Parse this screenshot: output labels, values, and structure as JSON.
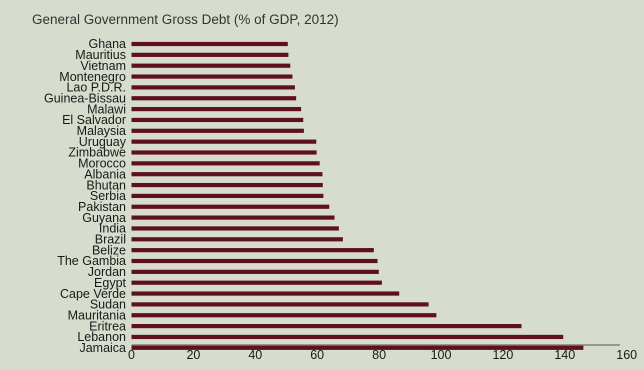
{
  "colors": {
    "background": "#d7ddce",
    "bar": "#5e1020",
    "axis": "#555555",
    "text": "#1a1a1a"
  },
  "chart_data": {
    "type": "bar",
    "orientation": "horizontal",
    "title": "General Government Gross Debt (% of GDP, 2012)",
    "xlabel": "",
    "ylabel": "",
    "xlim": [
      0,
      160
    ],
    "xticks": [
      0,
      20,
      40,
      60,
      80,
      100,
      120,
      140,
      160
    ],
    "grid": false,
    "legend": "none",
    "categories": [
      "Ghana",
      "Mauritius",
      "Vietnam",
      "Montenegro",
      "Lao P.D.R.",
      "Guinea-Bissau",
      "Malawi",
      "El Salvador",
      "Malaysia",
      "Uruguay",
      "Zimbabwe",
      "Morocco",
      "Albania",
      "Bhutan",
      "Serbia",
      "Pakistan",
      "Guyana",
      "India",
      "Brazil",
      "Belize",
      "The Gambia",
      "Jordan",
      "Egypt",
      "Cape Verde",
      "Sudan",
      "Mauritania",
      "Eritrea",
      "Lebanon",
      "Jamaica"
    ],
    "values": [
      50.5,
      50.7,
      51.3,
      52.0,
      52.8,
      53.2,
      54.8,
      55.5,
      55.7,
      59.7,
      59.8,
      60.8,
      61.7,
      61.8,
      62.0,
      63.9,
      65.6,
      67.0,
      68.3,
      78.3,
      79.5,
      79.9,
      80.9,
      86.5,
      96.0,
      98.5,
      126.0,
      139.5,
      146.0
    ]
  }
}
